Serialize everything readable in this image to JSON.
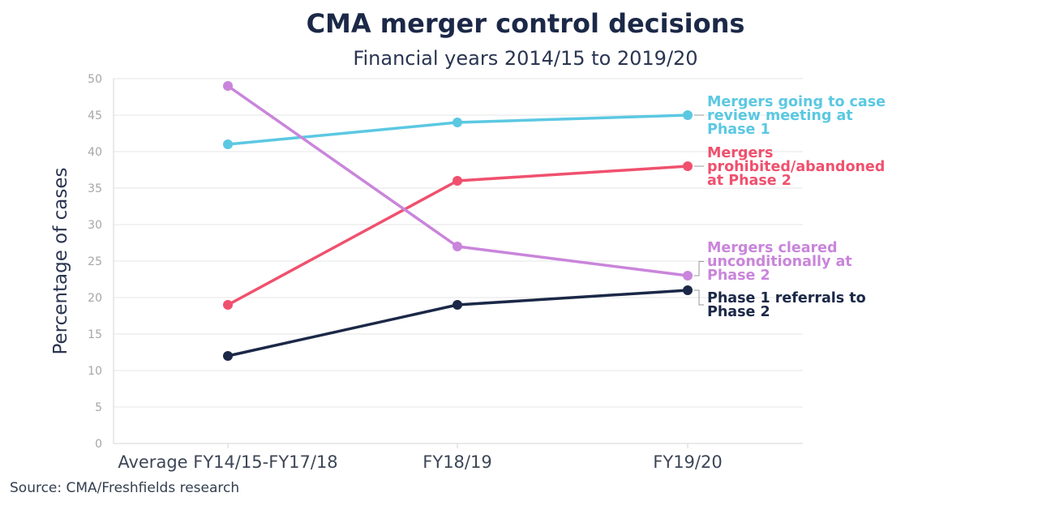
{
  "title": "CMA merger control decisions",
  "subtitle": "Financial years 2014/15 to 2019/20",
  "source": "Source: CMA/Freshfields research",
  "chart_data": {
    "type": "line",
    "title": "CMA merger control decisions",
    "subtitle": "Financial years 2014/15 to 2019/20",
    "xlabel": "",
    "ylabel": "Percentage of cases",
    "categories": [
      "Average FY14/15-FY17/18",
      "FY18/19",
      "FY19/20"
    ],
    "ylim": [
      0,
      50
    ],
    "yticks": [
      0,
      5,
      10,
      15,
      20,
      25,
      30,
      35,
      40,
      45,
      50
    ],
    "grid": true,
    "legend": "labels at line ends (right)",
    "series": [
      {
        "name": "Mergers going to case review meeting at Phase 1",
        "label_lines": [
          "Mergers going to case",
          "review meeting at",
          "Phase 1"
        ],
        "color": "#5bc8e2",
        "values": [
          41,
          44,
          45
        ]
      },
      {
        "name": "Mergers prohibited/abandoned at Phase 2",
        "label_lines": [
          "Mergers",
          "prohibited/abandoned",
          "at Phase 2"
        ],
        "color": "#f0506e",
        "values": [
          19,
          36,
          38
        ]
      },
      {
        "name": "Mergers cleared unconditionally at Phase 2",
        "label_lines": [
          "Mergers cleared",
          "unconditionally at",
          "Phase 2"
        ],
        "color": "#c985db",
        "values": [
          49,
          27,
          23
        ]
      },
      {
        "name": "Phase 1 referrals to Phase 2",
        "label_lines": [
          "Phase 1 referrals to",
          "Phase 2"
        ],
        "color": "#1b2847",
        "values": [
          12,
          19,
          21
        ]
      }
    ]
  }
}
